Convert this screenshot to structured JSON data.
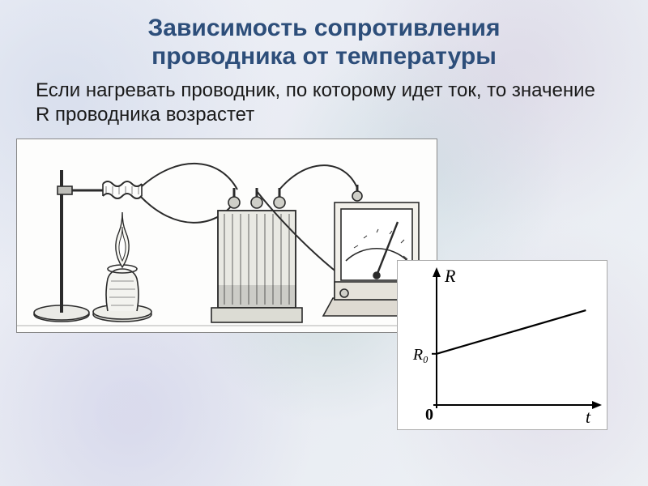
{
  "title": {
    "line1": "Зависимость сопротивления",
    "line2": "проводника от температуры",
    "color": "#2d4e7a",
    "fontsize": 30
  },
  "subtitle": {
    "text": "Если нагревать проводник, по которому идет ток, то значение  R  проводника возрастет",
    "color": "#1a1a1a",
    "fontsize": 24
  },
  "graph": {
    "type": "line",
    "xlabel": "t",
    "ylabel": "R",
    "y_intercept_label": "R₀",
    "origin_label": "0",
    "xlim": [
      0,
      10
    ],
    "ylim": [
      0,
      10
    ],
    "line": {
      "x0": 0,
      "y0": 4.0,
      "x1": 9.5,
      "y1": 7.4
    },
    "axis_color": "#000000",
    "line_color": "#000000",
    "line_width": 2.2,
    "axis_width": 2.0,
    "background": "#ffffff",
    "label_fontsize": 22
  },
  "apparatus": {
    "description": "experiment-heating-conductor",
    "stroke": "#2b2b2b",
    "fill_light": "#f5f5f2",
    "background": "#fdfdfc"
  }
}
